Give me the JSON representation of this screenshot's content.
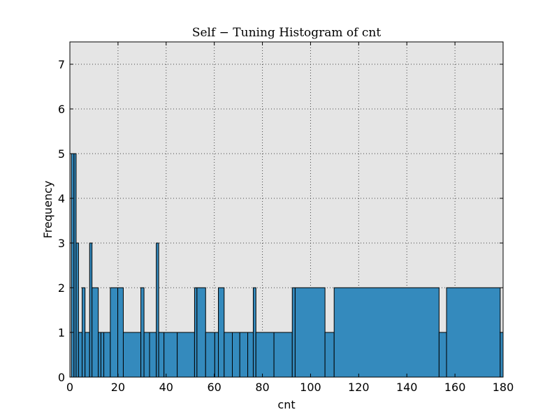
{
  "chart_data": {
    "type": "bar",
    "title": "Self − Tuning Histogram of cnt",
    "xlabel": "cnt",
    "ylabel": "Frequency",
    "xlim": [
      0,
      180
    ],
    "ylim": [
      0,
      7.5
    ],
    "xticks": [
      0,
      20,
      40,
      60,
      80,
      100,
      120,
      140,
      160,
      180
    ],
    "yticks": [
      0,
      1,
      2,
      3,
      4,
      5,
      6,
      7
    ],
    "grid": true,
    "bar_color": "#348abd",
    "plot_background": "#e5e5e5",
    "bins": [
      {
        "x0": 0.6,
        "x1": 1.7,
        "count": 5
      },
      {
        "x0": 1.7,
        "x1": 2.6,
        "count": 5
      },
      {
        "x0": 2.6,
        "x1": 3.6,
        "count": 3
      },
      {
        "x0": 3.6,
        "x1": 5.1,
        "count": 1
      },
      {
        "x0": 5.1,
        "x1": 6.3,
        "count": 2
      },
      {
        "x0": 6.3,
        "x1": 8.2,
        "count": 1
      },
      {
        "x0": 8.2,
        "x1": 9.2,
        "count": 3
      },
      {
        "x0": 9.2,
        "x1": 11.8,
        "count": 2
      },
      {
        "x0": 11.8,
        "x1": 12.9,
        "count": 1
      },
      {
        "x0": 12.9,
        "x1": 14.1,
        "count": 1
      },
      {
        "x0": 14.1,
        "x1": 16.8,
        "count": 1
      },
      {
        "x0": 16.8,
        "x1": 19.9,
        "count": 2
      },
      {
        "x0": 19.9,
        "x1": 22.2,
        "count": 2
      },
      {
        "x0": 22.2,
        "x1": 29.5,
        "count": 1
      },
      {
        "x0": 29.5,
        "x1": 30.8,
        "count": 2
      },
      {
        "x0": 30.8,
        "x1": 33.1,
        "count": 1
      },
      {
        "x0": 33.1,
        "x1": 35.9,
        "count": 1
      },
      {
        "x0": 35.9,
        "x1": 36.9,
        "count": 3
      },
      {
        "x0": 36.9,
        "x1": 39.1,
        "count": 1
      },
      {
        "x0": 39.1,
        "x1": 44.6,
        "count": 1
      },
      {
        "x0": 44.6,
        "x1": 51.8,
        "count": 1
      },
      {
        "x0": 51.8,
        "x1": 52.8,
        "count": 2
      },
      {
        "x0": 52.8,
        "x1": 56.4,
        "count": 2
      },
      {
        "x0": 56.4,
        "x1": 60.2,
        "count": 1
      },
      {
        "x0": 60.2,
        "x1": 61.7,
        "count": 1
      },
      {
        "x0": 61.7,
        "x1": 64.1,
        "count": 2
      },
      {
        "x0": 64.1,
        "x1": 67.5,
        "count": 1
      },
      {
        "x0": 67.5,
        "x1": 70.6,
        "count": 1
      },
      {
        "x0": 70.6,
        "x1": 73.9,
        "count": 1
      },
      {
        "x0": 73.9,
        "x1": 76.2,
        "count": 1
      },
      {
        "x0": 76.2,
        "x1": 77.3,
        "count": 2
      },
      {
        "x0": 77.3,
        "x1": 84.8,
        "count": 1
      },
      {
        "x0": 84.8,
        "x1": 92.4,
        "count": 1
      },
      {
        "x0": 92.4,
        "x1": 93.6,
        "count": 2
      },
      {
        "x0": 93.6,
        "x1": 106.0,
        "count": 2
      },
      {
        "x0": 106.0,
        "x1": 109.8,
        "count": 1
      },
      {
        "x0": 109.8,
        "x1": 153.4,
        "count": 2
      },
      {
        "x0": 153.4,
        "x1": 156.5,
        "count": 1
      },
      {
        "x0": 156.5,
        "x1": 178.8,
        "count": 2
      },
      {
        "x0": 178.8,
        "x1": 180.0,
        "count": 1
      }
    ]
  }
}
